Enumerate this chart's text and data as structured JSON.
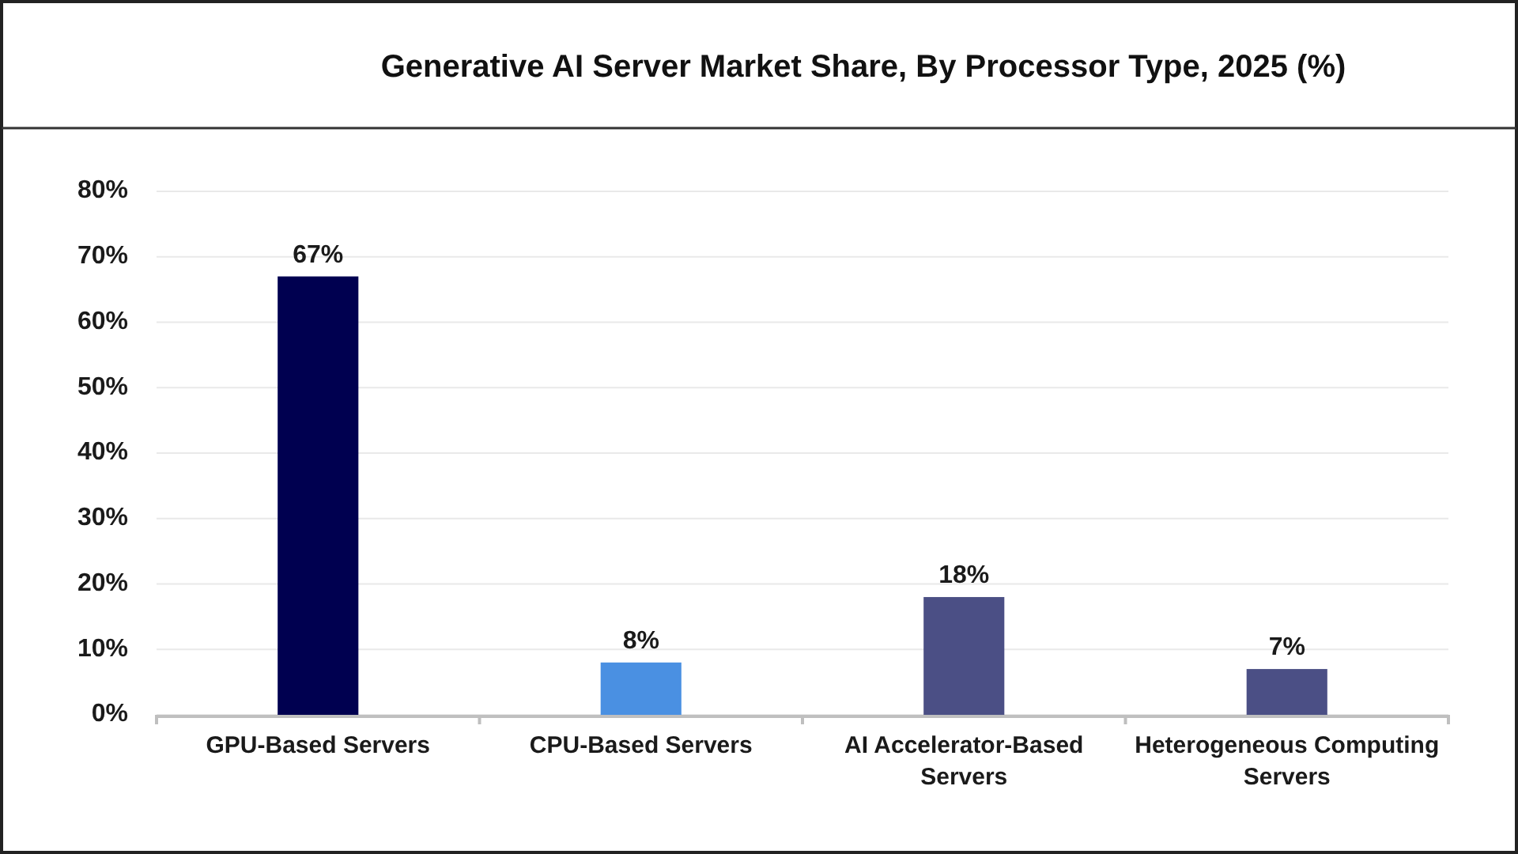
{
  "chart_data": {
    "type": "bar",
    "title": "Generative AI Server Market Share, By Processor Type, 2025 (%)",
    "categories": [
      "GPU-Based Servers",
      "CPU-Based Servers",
      "AI Accelerator-Based Servers",
      "Heterogeneous Computing Servers"
    ],
    "values": [
      67,
      8,
      18,
      7
    ],
    "colors": [
      "#000050",
      "#4a90e2",
      "#4b4f85",
      "#4b4f85"
    ],
    "value_labels": [
      "67%",
      "8%",
      "18%",
      "7%"
    ],
    "ylim": [
      0,
      80
    ],
    "yticks": [
      {
        "value": 0,
        "label": "0%"
      },
      {
        "value": 10,
        "label": "10%"
      },
      {
        "value": 20,
        "label": "20%"
      },
      {
        "value": 30,
        "label": "30%"
      },
      {
        "value": 40,
        "label": "40%"
      },
      {
        "value": 50,
        "label": "50%"
      },
      {
        "value": 60,
        "label": "60%"
      },
      {
        "value": 70,
        "label": "70%"
      },
      {
        "value": 80,
        "label": "80%"
      }
    ],
    "grid": "y"
  }
}
